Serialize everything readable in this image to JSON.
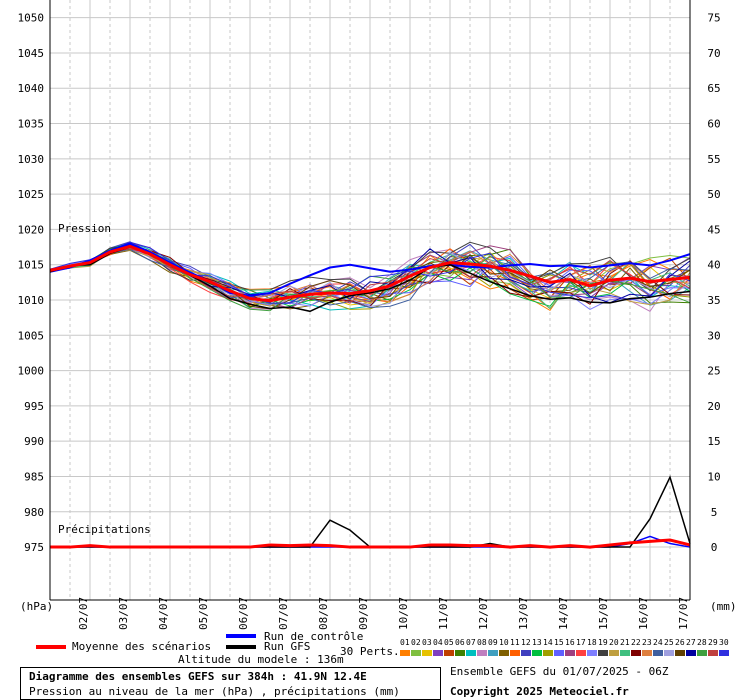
{
  "chart_data": {
    "type": "line",
    "title": "Diagramme des ensembles GEFS sur 384h : 41.9N 12.4E",
    "subtitle": "Pression au niveau de la mer (hPa) , précipitations (mm)",
    "x_dates": [
      "02/07",
      "03/07",
      "04/07",
      "05/07",
      "06/07",
      "07/07",
      "08/07",
      "09/07",
      "10/07",
      "11/07",
      "12/07",
      "13/07",
      "14/07",
      "15/07",
      "16/07",
      "17/07"
    ],
    "y_left_label": "(hPa)",
    "y_right_label": "(mm)",
    "y_left_range": [
      975,
      1050
    ],
    "y_left_ticks": [
      1050,
      1045,
      1040,
      1035,
      1030,
      1025,
      1020,
      1015,
      1010,
      1005,
      1000,
      995,
      990,
      985,
      980,
      975
    ],
    "y_right_ticks": [
      75,
      70,
      65,
      60,
      55,
      50,
      45,
      40,
      35,
      30,
      25,
      20,
      15,
      10,
      5,
      0
    ],
    "pressure_label": "Pression",
    "precip_label": "Précipitations",
    "grid": true,
    "series": [
      {
        "name": "Moyenne des scénarios",
        "color": "#ff0000",
        "x_hours": [
          0,
          12,
          24,
          36,
          48,
          60,
          72,
          84,
          96,
          108,
          120,
          132,
          144,
          156,
          168,
          180,
          192,
          204,
          216,
          228,
          240,
          252,
          264,
          276,
          288,
          300,
          312,
          324,
          336,
          348,
          360,
          372,
          384
        ],
        "pressure": [
          1014.2,
          1014.8,
          1015.3,
          1016.8,
          1017.6,
          1016.5,
          1015.0,
          1013.6,
          1012.6,
          1011.3,
          1010.2,
          1009.9,
          1010.4,
          1010.8,
          1011.0,
          1010.9,
          1011.3,
          1012.0,
          1013.4,
          1014.6,
          1015.3,
          1015.1,
          1014.8,
          1014.2,
          1013.4,
          1012.5,
          1012.9,
          1012.0,
          1012.8,
          1013.1,
          1012.6,
          1012.9,
          1013.2
        ],
        "precip": [
          0,
          0,
          0.2,
          0,
          0,
          0,
          0,
          0,
          0,
          0,
          0,
          0.3,
          0.2,
          0.3,
          0.2,
          0,
          0,
          0,
          0,
          0.3,
          0.3,
          0.2,
          0.2,
          0,
          0.2,
          0,
          0.2,
          0,
          0.3,
          0.6,
          0.8,
          1.0,
          0.3
        ]
      },
      {
        "name": "Run de contrôle",
        "color": "#0000ff",
        "x_hours": [
          0,
          12,
          24,
          36,
          48,
          60,
          72,
          84,
          96,
          108,
          120,
          132,
          144,
          156,
          168,
          180,
          192,
          204,
          216,
          228,
          240,
          252,
          264,
          276,
          288,
          300,
          312,
          324,
          336,
          348,
          360,
          372,
          384
        ],
        "pressure": [
          1014.0,
          1014.6,
          1015.6,
          1017.0,
          1018.0,
          1016.8,
          1015.3,
          1013.9,
          1012.6,
          1011.0,
          1010.6,
          1011.0,
          1012.3,
          1013.5,
          1014.6,
          1015.0,
          1014.5,
          1014.0,
          1014.3,
          1014.8,
          1015.0,
          1014.7,
          1014.6,
          1014.9,
          1015.1,
          1014.8,
          1014.9,
          1014.6,
          1014.9,
          1015.2,
          1014.9,
          1015.6,
          1016.5
        ],
        "precip": [
          0,
          0,
          0,
          0,
          0,
          0,
          0,
          0,
          0,
          0,
          0,
          0,
          0,
          0,
          0,
          0,
          0,
          0,
          0,
          0,
          0,
          0,
          0,
          0,
          0,
          0,
          0,
          0,
          0,
          0.5,
          1.5,
          0.5,
          0
        ]
      },
      {
        "name": "Run GFS",
        "color": "#000000",
        "x_hours": [
          0,
          12,
          24,
          36,
          48,
          60,
          72,
          84,
          96,
          108,
          120,
          132,
          144,
          156,
          168,
          180,
          192,
          204,
          216,
          228,
          240,
          252,
          264,
          276,
          288,
          300,
          312,
          324,
          336,
          348,
          360,
          372,
          384
        ],
        "pressure": [
          1014.0,
          1014.9,
          1015.0,
          1016.6,
          1017.5,
          1016.6,
          1015.0,
          1013.5,
          1012.0,
          1010.2,
          1009.4,
          1008.8,
          1009.0,
          1008.4,
          1009.7,
          1010.6,
          1011.0,
          1011.6,
          1012.8,
          1014.6,
          1015.0,
          1013.8,
          1012.6,
          1011.6,
          1010.6,
          1010.1,
          1010.3,
          1009.7,
          1009.6,
          1010.2,
          1010.4,
          1010.9,
          1011.2
        ],
        "precip": [
          0,
          0,
          0,
          0,
          0,
          0,
          0,
          0,
          0,
          0,
          0,
          0,
          0,
          0,
          3.8,
          2.4,
          0,
          0,
          0,
          0,
          0,
          0,
          0.5,
          0,
          0,
          0,
          0,
          0,
          0,
          0,
          4.0,
          9.9,
          0.5
        ]
      }
    ]
  },
  "legend": {
    "mean": "Moyenne des scénarios",
    "control": "Run de contrôle",
    "gfs": "Run GFS",
    "perts": "30 Perts.",
    "pert_labels": [
      "01",
      "02",
      "03",
      "04",
      "05",
      "06",
      "07",
      "08",
      "09",
      "10",
      "11",
      "12",
      "13",
      "14",
      "15",
      "16",
      "17",
      "18",
      "19",
      "20",
      "21",
      "22",
      "23",
      "24",
      "25",
      "26",
      "27",
      "28",
      "29",
      "30"
    ],
    "pert_colors": [
      "#ff7f00",
      "#7fbf3f",
      "#e6c200",
      "#7f3fbf",
      "#bf3f00",
      "#3f7f00",
      "#00bfbf",
      "#bf7fbf",
      "#3f9fbf",
      "#7f5f00",
      "#ff5f00",
      "#3f3fbf",
      "#00bf3f",
      "#9f9f00",
      "#5f5fff",
      "#9f3f7f",
      "#ff3f3f",
      "#7f7fff",
      "#3f3f3f",
      "#bf9f3f",
      "#3fbf7f",
      "#7f0000",
      "#df7f3f",
      "#3f5f9f",
      "#9f9fdf",
      "#5f3f00",
      "#00009f",
      "#3f9f3f",
      "#bf3f3f",
      "#2f2fdf"
    ]
  },
  "altitude": "Altitude du modele : 136m",
  "ensemble_run": "Ensemble GEFS du 01/07/2025 - 06Z",
  "copyright": "Copyright 2025 Meteociel.fr"
}
